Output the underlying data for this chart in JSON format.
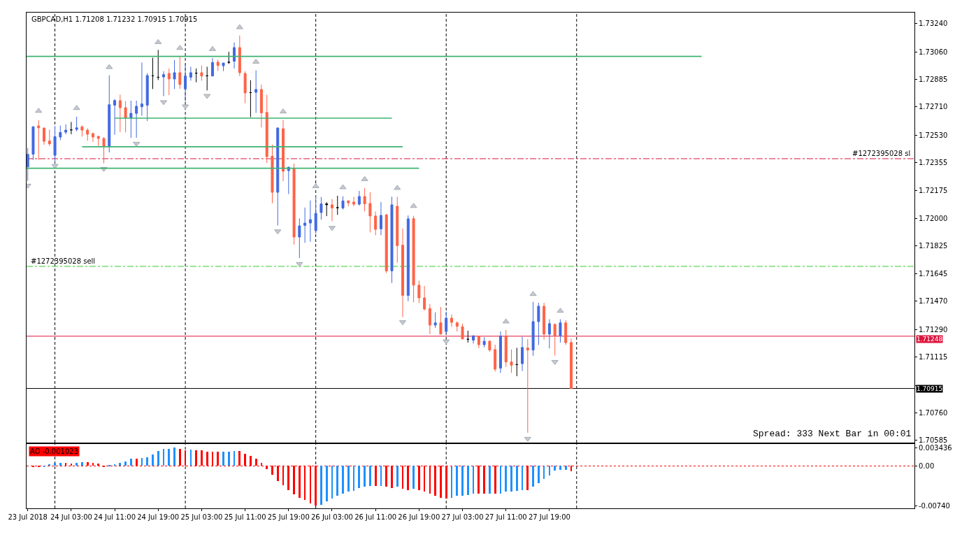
{
  "chart_data": [
    {
      "type": "candlestick",
      "title": "GBPCAD,H1 1.71208 1.71232 1.70915 1.70915",
      "x": [
        "2018-07-23T19:00",
        "2018-07-23T20:00",
        "2018-07-23T21:00",
        "2018-07-23T22:00",
        "2018-07-23T23:00",
        "2018-07-24T00:00",
        "2018-07-24T01:00",
        "2018-07-24T02:00",
        "2018-07-24T03:00",
        "2018-07-24T04:00",
        "2018-07-24T05:00",
        "2018-07-24T06:00",
        "2018-07-24T07:00",
        "2018-07-24T08:00",
        "2018-07-24T09:00",
        "2018-07-24T10:00",
        "2018-07-24T11:00",
        "2018-07-24T12:00",
        "2018-07-24T13:00",
        "2018-07-24T14:00",
        "2018-07-24T15:00",
        "2018-07-24T16:00",
        "2018-07-24T17:00",
        "2018-07-24T18:00",
        "2018-07-24T19:00",
        "2018-07-24T20:00",
        "2018-07-24T21:00",
        "2018-07-24T22:00",
        "2018-07-24T23:00",
        "2018-07-25T00:00",
        "2018-07-25T01:00",
        "2018-07-25T02:00",
        "2018-07-25T03:00",
        "2018-07-25T04:00",
        "2018-07-25T05:00",
        "2018-07-25T06:00",
        "2018-07-25T07:00",
        "2018-07-25T08:00",
        "2018-07-25T09:00",
        "2018-07-25T10:00",
        "2018-07-25T11:00",
        "2018-07-25T12:00",
        "2018-07-25T13:00",
        "2018-07-25T14:00",
        "2018-07-25T15:00",
        "2018-07-25T16:00",
        "2018-07-25T17:00",
        "2018-07-25T18:00",
        "2018-07-25T19:00",
        "2018-07-25T20:00",
        "2018-07-25T21:00",
        "2018-07-25T22:00",
        "2018-07-25T23:00",
        "2018-07-26T00:00",
        "2018-07-26T01:00",
        "2018-07-26T02:00",
        "2018-07-26T03:00",
        "2018-07-26T04:00",
        "2018-07-26T05:00",
        "2018-07-26T06:00",
        "2018-07-26T07:00",
        "2018-07-26T08:00",
        "2018-07-26T09:00",
        "2018-07-26T10:00",
        "2018-07-26T11:00",
        "2018-07-26T12:00",
        "2018-07-26T13:00",
        "2018-07-26T14:00",
        "2018-07-26T15:00",
        "2018-07-26T16:00",
        "2018-07-26T17:00",
        "2018-07-26T18:00",
        "2018-07-26T19:00",
        "2018-07-26T20:00",
        "2018-07-26T21:00",
        "2018-07-26T22:00",
        "2018-07-26T23:00",
        "2018-07-27T00:00",
        "2018-07-27T01:00",
        "2018-07-27T02:00",
        "2018-07-27T03:00",
        "2018-07-27T04:00",
        "2018-07-27T05:00",
        "2018-07-27T06:00",
        "2018-07-27T07:00",
        "2018-07-27T08:00",
        "2018-07-27T09:00",
        "2018-07-27T10:00",
        "2018-07-27T11:00",
        "2018-07-27T12:00",
        "2018-07-27T13:00",
        "2018-07-27T14:00",
        "2018-07-27T15:00",
        "2018-07-27T16:00",
        "2018-07-27T17:00",
        "2018-07-27T18:00",
        "2018-07-27T19:00",
        "2018-07-27T20:00",
        "2018-07-27T21:00",
        "2018-07-27T22:00",
        "2018-07-27T23:00"
      ],
      "ohlc": [
        [
          1.72327,
          1.72447,
          1.72238,
          1.72407
        ],
        [
          1.72408,
          1.72587,
          1.72371,
          1.72582
        ],
        [
          1.72588,
          1.72624,
          1.72371,
          1.72576
        ],
        [
          1.72575,
          1.72576,
          1.72468,
          1.7249
        ],
        [
          1.72492,
          1.72564,
          1.7246,
          1.72474
        ],
        [
          1.72401,
          1.72587,
          1.72357,
          1.7252
        ],
        [
          1.72517,
          1.7259,
          1.72497,
          1.72546
        ],
        [
          1.72548,
          1.72598,
          1.72535,
          1.72561
        ],
        [
          1.72563,
          1.72613,
          1.72535,
          1.72563
        ],
        [
          1.72566,
          1.72647,
          1.72553,
          1.72576
        ],
        [
          1.72582,
          1.72591,
          1.7252,
          1.72561
        ],
        [
          1.72561,
          1.72573,
          1.72493,
          1.72535
        ],
        [
          1.72539,
          1.72546,
          1.72486,
          1.72517
        ],
        [
          1.72521,
          1.72526,
          1.7246,
          1.72508
        ],
        [
          1.72508,
          1.72517,
          1.72349,
          1.72456
        ],
        [
          1.72456,
          1.7291,
          1.72419,
          1.72723
        ],
        [
          1.7272,
          1.72758,
          1.72532,
          1.7275
        ],
        [
          1.72749,
          1.72787,
          1.72549,
          1.72704
        ],
        [
          1.72704,
          1.72746,
          1.72546,
          1.72639
        ],
        [
          1.72639,
          1.72749,
          1.72512,
          1.72668
        ],
        [
          1.72668,
          1.72749,
          1.72512,
          1.72713
        ],
        [
          1.7271,
          1.72992,
          1.72653,
          1.72728
        ],
        [
          1.7272,
          1.72924,
          1.72619,
          1.72909
        ],
        [
          1.72907,
          1.73022,
          1.72823,
          1.72907
        ],
        [
          1.72898,
          1.73072,
          1.7288,
          1.72898
        ],
        [
          1.729,
          1.72936,
          1.72778,
          1.72915
        ],
        [
          1.72922,
          1.72954,
          1.72784,
          1.72887
        ],
        [
          1.72887,
          1.73007,
          1.72823,
          1.72927
        ],
        [
          1.72927,
          1.73029,
          1.72824,
          1.72852
        ],
        [
          1.72824,
          1.7298,
          1.72742,
          1.72906
        ],
        [
          1.72898,
          1.72965,
          1.72876,
          1.72927
        ],
        [
          1.72924,
          1.72954,
          1.72866,
          1.72924
        ],
        [
          1.72927,
          1.72973,
          1.72876,
          1.72906
        ],
        [
          1.72907,
          1.72965,
          1.72814,
          1.72907
        ],
        [
          1.72906,
          1.7302,
          1.72904,
          1.72992
        ],
        [
          1.72994,
          1.7301,
          1.72938,
          1.72973
        ],
        [
          1.72971,
          1.72989,
          1.72937,
          1.72989
        ],
        [
          1.72994,
          1.7306,
          1.72983,
          1.72994
        ],
        [
          1.73,
          1.7312,
          1.72954,
          1.73087
        ],
        [
          1.73087,
          1.73164,
          1.72905,
          1.72927
        ],
        [
          1.72922,
          1.72937,
          1.72733,
          1.72798
        ],
        [
          1.728,
          1.72879,
          1.72644,
          1.728
        ],
        [
          1.72802,
          1.72942,
          1.72671,
          1.7282
        ],
        [
          1.7282,
          1.72852,
          1.72578,
          1.72671
        ],
        [
          1.72674,
          1.72786,
          1.72352,
          1.72392
        ],
        [
          1.72395,
          1.72469,
          1.72095,
          1.72165
        ],
        [
          1.72165,
          1.72578,
          1.71954,
          1.72575
        ],
        [
          1.7257,
          1.72625,
          1.72236,
          1.72299
        ],
        [
          1.72303,
          1.72328,
          1.72154,
          1.72325
        ],
        [
          1.72318,
          1.72348,
          1.71832,
          1.7188
        ],
        [
          1.7188,
          1.71998,
          1.71746,
          1.71951
        ],
        [
          1.71954,
          1.72068,
          1.71843,
          1.71969
        ],
        [
          1.71969,
          1.72113,
          1.7185,
          1.71991
        ],
        [
          1.71921,
          1.72147,
          1.71902,
          1.72031
        ],
        [
          1.72036,
          1.72135,
          1.71991,
          1.72091
        ],
        [
          1.72091,
          1.72102,
          1.72013,
          1.72086
        ],
        [
          1.72085,
          1.72122,
          1.71981,
          1.72065
        ],
        [
          1.72067,
          1.72143,
          1.72021,
          1.72067
        ],
        [
          1.72065,
          1.7214,
          1.72055,
          1.7211
        ],
        [
          1.7211,
          1.72113,
          1.72076,
          1.72098
        ],
        [
          1.72103,
          1.72135,
          1.72076,
          1.72089
        ],
        [
          1.72089,
          1.72174,
          1.7208,
          1.72138
        ],
        [
          1.72138,
          1.72192,
          1.72043,
          1.72092
        ],
        [
          1.72094,
          1.72165,
          1.71909,
          1.72014
        ],
        [
          1.72014,
          1.72043,
          1.71891,
          1.71929
        ],
        [
          1.71932,
          1.72103,
          1.71891,
          1.72018
        ],
        [
          1.72021,
          1.72028,
          1.7165,
          1.71664
        ],
        [
          1.71664,
          1.72137,
          1.71587,
          1.72085
        ],
        [
          1.72076,
          1.72137,
          1.71716,
          1.71825
        ],
        [
          1.71828,
          1.71935,
          1.7137,
          1.71508
        ],
        [
          1.71508,
          1.72018,
          1.71471,
          1.71996
        ],
        [
          1.71997,
          1.72015,
          1.71464,
          1.71573
        ],
        [
          1.71573,
          1.71602,
          1.71459,
          1.71492
        ],
        [
          1.71492,
          1.71568,
          1.71412,
          1.71421
        ],
        [
          1.71424,
          1.71452,
          1.71261,
          1.71319
        ],
        [
          1.71319,
          1.714,
          1.71301,
          1.71333
        ],
        [
          1.71333,
          1.71434,
          1.7126,
          1.71261
        ],
        [
          1.71278,
          1.71405,
          1.71261,
          1.71363
        ],
        [
          1.71363,
          1.71387,
          1.71308,
          1.71336
        ],
        [
          1.71333,
          1.71342,
          1.71278,
          1.71311
        ],
        [
          1.71308,
          1.71328,
          1.71229,
          1.7123
        ],
        [
          1.71228,
          1.71283,
          1.71207,
          1.71228
        ],
        [
          1.71223,
          1.71256,
          1.71201,
          1.71249
        ],
        [
          1.71249,
          1.71252,
          1.71172,
          1.71194
        ],
        [
          1.71194,
          1.71241,
          1.71177,
          1.71216
        ],
        [
          1.71216,
          1.71222,
          1.71149,
          1.7116
        ],
        [
          1.71163,
          1.71194,
          1.71023,
          1.71038
        ],
        [
          1.71044,
          1.71278,
          1.71014,
          1.71249
        ],
        [
          1.71249,
          1.71289,
          1.71053,
          1.71084
        ],
        [
          1.71085,
          1.71163,
          1.71014,
          1.71063
        ],
        [
          1.71067,
          1.71174,
          1.70993,
          1.71067
        ],
        [
          1.71073,
          1.71244,
          1.71026,
          1.71176
        ],
        [
          1.71173,
          1.71229,
          1.70633,
          1.7116
        ],
        [
          1.7116,
          1.71467,
          1.71123,
          1.71341
        ],
        [
          1.71341,
          1.71461,
          1.71192,
          1.71439
        ],
        [
          1.71439,
          1.71461,
          1.71226,
          1.71261
        ],
        [
          1.71261,
          1.71356,
          1.7117,
          1.71328
        ],
        [
          1.71323,
          1.7133,
          1.71125,
          1.71252
        ],
        [
          1.71252,
          1.71356,
          1.71207,
          1.71333
        ],
        [
          1.71333,
          1.7135,
          1.71192,
          1.71207
        ],
        [
          1.71208,
          1.71232,
          1.70915,
          1.70915
        ]
      ],
      "colors": [
        "#4169e1",
        "#4169e1",
        "#ff6347",
        "#ff6347",
        "#ff6347",
        "#4169e1",
        "#4169e1",
        "#4169e1",
        "#000000",
        "#4169e1",
        "#ff6347",
        "#ff6347",
        "#ff6347",
        "#ff6347",
        "#ff6347",
        "#4169e1",
        "#4169e1",
        "#ff6347",
        "#ff6347",
        "#4169e1",
        "#4169e1",
        "#4169e1",
        "#4169e1",
        "#000000",
        "#000000",
        "#4169e1",
        "#ff6347",
        "#4169e1",
        "#ff6347",
        "#4169e1",
        "#4169e1",
        "#000000",
        "#ff6347",
        "#000000",
        "#4169e1",
        "#ff6347",
        "#4169e1",
        "#000000",
        "#4169e1",
        "#ff6347",
        "#ff6347",
        "#000000",
        "#4169e1",
        "#ff6347",
        "#ff6347",
        "#ff6347",
        "#4169e1",
        "#ff6347",
        "#4169e1",
        "#ff6347",
        "#4169e1",
        "#4169e1",
        "#4169e1",
        "#4169e1",
        "#4169e1",
        "#000000",
        "#ff6347",
        "#000000",
        "#4169e1",
        "#ff6347",
        "#ff6347",
        "#4169e1",
        "#ff6347",
        "#ff6347",
        "#ff6347",
        "#4169e1",
        "#ff6347",
        "#4169e1",
        "#ff6347",
        "#ff6347",
        "#4169e1",
        "#ff6347",
        "#ff6347",
        "#ff6347",
        "#ff6347",
        "#4169e1",
        "#ff6347",
        "#4169e1",
        "#ff6347",
        "#ff6347",
        "#ff6347",
        "#000000",
        "#4169e1",
        "#ff6347",
        "#4169e1",
        "#ff6347",
        "#ff6347",
        "#4169e1",
        "#ff6347",
        "#ff6347",
        "#000000",
        "#4169e1",
        "#ff6347",
        "#4169e1",
        "#4169e1",
        "#ff6347",
        "#4169e1",
        "#ff6347",
        "#4169e1",
        "#ff6347",
        "#ff6347"
      ],
      "series": [
        {
          "type": "scatter",
          "marker": "triangle-up",
          "color": "#c4c8d0",
          "x": [
            "2018-07-23T21:00",
            "2018-07-24T04:00",
            "2018-07-24T10:00",
            "2018-07-24T19:00",
            "2018-07-24T23:00",
            "2018-07-25T05:00",
            "2018-07-25T10:00",
            "2018-07-25T13:00",
            "2018-07-25T18:00",
            "2018-07-26T00:00",
            "2018-07-26T05:00",
            "2018-07-26T09:00",
            "2018-07-26T15:00",
            "2018-07-26T18:00",
            "2018-07-27T11:00",
            "2018-07-27T16:00",
            "2018-07-27T21:00"
          ],
          "values": [
            1.72683,
            1.72701,
            1.72962,
            1.73121,
            1.73084,
            1.73077,
            1.73216,
            1.72996,
            1.72679,
            1.72203,
            1.72196,
            1.72248,
            1.72192,
            1.72077,
            1.71341,
            1.71516,
            1.71409
          ]
        },
        {
          "type": "scatter",
          "marker": "triangle-down",
          "color": "#c4c8d0",
          "x": [
            "2018-07-23T19:00",
            "2018-07-24T00:00",
            "2018-07-24T09:00",
            "2018-07-24T15:00",
            "2018-07-24T20:00",
            "2018-07-25T00:00",
            "2018-07-25T04:00",
            "2018-07-25T17:00",
            "2018-07-25T21:00",
            "2018-07-26T03:00",
            "2018-07-26T16:00",
            "2018-07-27T00:00",
            "2018-07-27T15:00",
            "2018-07-27T20:00"
          ],
          "values": [
            1.72208,
            1.72334,
            1.72315,
            1.72475,
            1.7274,
            1.72713,
            1.7278,
            1.71917,
            1.71709,
            1.71939,
            1.71338,
            1.71216,
            1.70595,
            1.71085
          ]
        },
        {
          "type": "line",
          "color": "#3cb371",
          "x": [
            "2018-07-23T18:47",
            "2018-07-28T23:00"
          ],
          "values": [
            1.73031,
            1.73031
          ]
        },
        {
          "type": "line",
          "color": "#3cb371",
          "x": [
            "2018-07-24T11:00",
            "2018-07-26T14:00"
          ],
          "values": [
            1.72637,
            1.72637
          ]
        },
        {
          "type": "line",
          "color": "#3cb371",
          "x": [
            "2018-07-24T05:00",
            "2018-07-26T16:00"
          ],
          "values": [
            1.72455,
            1.72455
          ]
        },
        {
          "type": "line",
          "color": "#3cb371",
          "x": [
            "2018-07-23T18:47",
            "2018-07-26T19:00"
          ],
          "values": [
            1.72318,
            1.72318
          ]
        }
      ],
      "ref_lines": [
        {
          "axis": "x",
          "value": "2018-07-24T00:00",
          "color": "#000000",
          "line_style": "dashed"
        },
        {
          "axis": "x",
          "value": "2018-07-25T00:00",
          "color": "#000000",
          "line_style": "dashed"
        },
        {
          "axis": "x",
          "value": "2018-07-26T00:00",
          "color": "#000000",
          "line_style": "dashed"
        },
        {
          "axis": "x",
          "value": "2018-07-27T00:00",
          "color": "#000000",
          "line_style": "dashed"
        },
        {
          "axis": "x",
          "value": "2018-07-28T00:00",
          "color": "#000000",
          "line_style": "dashed"
        },
        {
          "axis": "y",
          "value": 1.72379,
          "label": "#1272395028 sl",
          "color": "#dc143c",
          "line_style": "dashdot"
        },
        {
          "axis": "y",
          "value": 1.71693,
          "label": "#1272395028 sell",
          "color": "#32cd32",
          "line_style": "dashdot"
        },
        {
          "axis": "y",
          "value": 1.71248,
          "label": "1.71248",
          "color": "#dc143c",
          "line_style": "solid"
        },
        {
          "axis": "y",
          "value": 1.70915,
          "label": "1.70915",
          "color": "#000000",
          "line_style": "solid"
        }
      ],
      "annotations": [
        "Spread: 333 Next Bar in 00:01"
      ],
      "xlim": [
        "2018-07-23T18:47",
        "2018-07-30T14:10"
      ],
      "ylim": [
        1.7057,
        1.7331
      ],
      "yticks": [
        {
          "value": 1.7324,
          "label": "1.73240"
        },
        {
          "value": 1.7306,
          "label": "1.73060"
        },
        1.72885,
        {
          "value": 1.7271,
          "label": "1.72710"
        },
        {
          "value": 1.7253,
          "label": "1.72530"
        },
        1.72355,
        1.72175,
        {
          "value": 1.72,
          "label": "1.72000"
        },
        1.71825,
        1.71645,
        {
          "value": 1.7147,
          "label": "1.71470"
        },
        {
          "value": 1.7129,
          "label": "1.71290"
        },
        1.71115,
        {
          "value": 1.70935,
          "label": null
        },
        {
          "value": 1.7076,
          "label": "1.70760"
        },
        1.70585
      ],
      "tick_labels": "y"
    },
    {
      "type": "bar",
      "title": "AO -0.001023",
      "x": [
        "2018-07-23T20:00",
        "2018-07-23T21:00",
        "2018-07-23T22:00",
        "2018-07-23T23:00",
        "2018-07-24T00:00",
        "2018-07-24T01:00",
        "2018-07-24T02:00",
        "2018-07-24T03:00",
        "2018-07-24T04:00",
        "2018-07-24T05:00",
        "2018-07-24T06:00",
        "2018-07-24T07:00",
        "2018-07-24T08:00",
        "2018-07-24T09:00",
        "2018-07-24T10:00",
        "2018-07-24T11:00",
        "2018-07-24T12:00",
        "2018-07-24T13:00",
        "2018-07-24T14:00",
        "2018-07-24T15:00",
        "2018-07-24T16:00",
        "2018-07-24T17:00",
        "2018-07-24T18:00",
        "2018-07-24T19:00",
        "2018-07-24T20:00",
        "2018-07-24T21:00",
        "2018-07-24T22:00",
        "2018-07-24T23:00",
        "2018-07-25T00:00",
        "2018-07-25T01:00",
        "2018-07-25T02:00",
        "2018-07-25T03:00",
        "2018-07-25T04:00",
        "2018-07-25T05:00",
        "2018-07-25T06:00",
        "2018-07-25T07:00",
        "2018-07-25T08:00",
        "2018-07-25T09:00",
        "2018-07-25T10:00",
        "2018-07-25T11:00",
        "2018-07-25T12:00",
        "2018-07-25T13:00",
        "2018-07-25T14:00",
        "2018-07-25T15:00",
        "2018-07-25T16:00",
        "2018-07-25T17:00",
        "2018-07-25T18:00",
        "2018-07-25T19:00",
        "2018-07-25T20:00",
        "2018-07-25T21:00",
        "2018-07-25T22:00",
        "2018-07-25T23:00",
        "2018-07-26T00:00",
        "2018-07-26T01:00",
        "2018-07-26T02:00",
        "2018-07-26T03:00",
        "2018-07-26T04:00",
        "2018-07-26T05:00",
        "2018-07-26T06:00",
        "2018-07-26T07:00",
        "2018-07-26T08:00",
        "2018-07-26T09:00",
        "2018-07-26T10:00",
        "2018-07-26T11:00",
        "2018-07-26T12:00",
        "2018-07-26T13:00",
        "2018-07-26T14:00",
        "2018-07-26T15:00",
        "2018-07-26T16:00",
        "2018-07-26T17:00",
        "2018-07-26T18:00",
        "2018-07-26T19:00",
        "2018-07-26T20:00",
        "2018-07-26T21:00",
        "2018-07-26T22:00",
        "2018-07-26T23:00",
        "2018-07-27T00:00",
        "2018-07-27T01:00",
        "2018-07-27T02:00",
        "2018-07-27T03:00",
        "2018-07-27T04:00",
        "2018-07-27T05:00",
        "2018-07-27T06:00",
        "2018-07-27T07:00",
        "2018-07-27T08:00",
        "2018-07-27T09:00",
        "2018-07-27T10:00",
        "2018-07-27T11:00",
        "2018-07-27T12:00",
        "2018-07-27T13:00",
        "2018-07-27T14:00",
        "2018-07-27T15:00",
        "2018-07-27T16:00",
        "2018-07-27T17:00",
        "2018-07-27T18:00",
        "2018-07-27T19:00",
        "2018-07-27T20:00",
        "2018-07-27T21:00",
        "2018-07-27T22:00",
        "2018-07-27T23:00"
      ],
      "values": [
        -0.0002,
        -0.0002,
        -0.0001,
        0.0003,
        0.0006,
        0.0006,
        0.0006,
        0.0004,
        0.0006,
        0.0007,
        0.0007,
        0.0006,
        0.0005,
        -0.0001,
        0.0001,
        0.0003,
        0.0006,
        0.0009,
        0.0014,
        0.0013,
        0.0015,
        0.0016,
        0.0022,
        0.0028,
        0.0032,
        0.0032,
        0.003436,
        0.0032,
        0.0029,
        0.003,
        0.0029,
        0.0029,
        0.0027,
        0.0027,
        0.0027,
        0.0027,
        0.0027,
        0.0028,
        0.0028,
        0.0023,
        0.0019,
        0.0013,
        0.0006,
        -0.0006,
        -0.0016,
        -0.0028,
        -0.0036,
        -0.0045,
        -0.0053,
        -0.006,
        -0.0063,
        -0.007,
        -0.0074,
        -0.0073,
        -0.0066,
        -0.0061,
        -0.0056,
        -0.0052,
        -0.0048,
        -0.0046,
        -0.0041,
        -0.0038,
        -0.0037,
        -0.0037,
        -0.0037,
        -0.0039,
        -0.0041,
        -0.0039,
        -0.0043,
        -0.0045,
        -0.0043,
        -0.0045,
        -0.0048,
        -0.0051,
        -0.0055,
        -0.006,
        -0.0061,
        -0.0059,
        -0.0056,
        -0.0055,
        -0.0054,
        -0.0052,
        -0.0052,
        -0.0052,
        -0.0052,
        -0.0052,
        -0.0051,
        -0.0048,
        -0.0048,
        -0.0047,
        -0.0045,
        -0.0045,
        -0.0039,
        -0.0032,
        -0.0024,
        -0.0018,
        -0.0009,
        -0.0007,
        -0.0007,
        -0.001023
      ],
      "colors": [
        "#ff0000",
        "#ff0000",
        "#1e90ff",
        "#1e90ff",
        "#1e90ff",
        "#1e90ff",
        "#ff0000",
        "#ff0000",
        "#1e90ff",
        "#1e90ff",
        "#ff0000",
        "#ff0000",
        "#ff0000",
        "#ff0000",
        "#1e90ff",
        "#1e90ff",
        "#1e90ff",
        "#1e90ff",
        "#1e90ff",
        "#ff0000",
        "#1e90ff",
        "#1e90ff",
        "#1e90ff",
        "#1e90ff",
        "#1e90ff",
        "#1e90ff",
        "#1e90ff",
        "#ff0000",
        "#ff0000",
        "#1e90ff",
        "#ff0000",
        "#ff0000",
        "#ff0000",
        "#ff0000",
        "#ff0000",
        "#1e90ff",
        "#1e90ff",
        "#1e90ff",
        "#ff0000",
        "#ff0000",
        "#ff0000",
        "#ff0000",
        "#ff0000",
        "#ff0000",
        "#ff0000",
        "#ff0000",
        "#ff0000",
        "#ff0000",
        "#ff0000",
        "#ff0000",
        "#ff0000",
        "#ff0000",
        "#ff0000",
        "#1e90ff",
        "#1e90ff",
        "#1e90ff",
        "#1e90ff",
        "#1e90ff",
        "#1e90ff",
        "#1e90ff",
        "#1e90ff",
        "#1e90ff",
        "#1e90ff",
        "#ff0000",
        "#1e90ff",
        "#ff0000",
        "#ff0000",
        "#1e90ff",
        "#ff0000",
        "#ff0000",
        "#1e90ff",
        "#ff0000",
        "#ff0000",
        "#ff0000",
        "#ff0000",
        "#ff0000",
        "#ff0000",
        "#1e90ff",
        "#1e90ff",
        "#1e90ff",
        "#1e90ff",
        "#1e90ff",
        "#ff0000",
        "#ff0000",
        "#1e90ff",
        "#ff0000",
        "#1e90ff",
        "#1e90ff",
        "#1e90ff",
        "#1e90ff",
        "#1e90ff",
        "#ff0000",
        "#1e90ff",
        "#1e90ff",
        "#1e90ff",
        "#1e90ff",
        "#1e90ff",
        "#1e90ff",
        "#1e90ff",
        "#ff0000"
      ],
      "ref_lines": [
        {
          "axis": "x",
          "value": "2018-07-24T00:00",
          "color": "#000000",
          "line_style": "dashed"
        },
        {
          "axis": "x",
          "value": "2018-07-25T00:00",
          "color": "#000000",
          "line_style": "dashed"
        },
        {
          "axis": "x",
          "value": "2018-07-26T00:00",
          "color": "#000000",
          "line_style": "dashed"
        },
        {
          "axis": "x",
          "value": "2018-07-27T00:00",
          "color": "#000000",
          "line_style": "dashed"
        },
        {
          "axis": "x",
          "value": "2018-07-28T00:00",
          "color": "#000000",
          "line_style": "dashed"
        },
        {
          "axis": "y",
          "value": 0,
          "color": "#ff0000",
          "line_style": "dotted"
        }
      ],
      "xlim": [
        "2018-07-23T18:47",
        "2018-07-30T14:10"
      ],
      "xticks": [
        {
          "value": "2018-07-23T19:00",
          "label": "23 Jul 2018"
        },
        {
          "value": "2018-07-24T03:00",
          "label": "24 Jul 03:00"
        },
        {
          "value": "2018-07-24T11:00",
          "label": "24 Jul 11:00"
        },
        {
          "value": "2018-07-24T19:00",
          "label": "24 Jul 19:00"
        },
        {
          "value": "2018-07-25T03:00",
          "label": "25 Jul 03:00"
        },
        {
          "value": "2018-07-25T11:00",
          "label": "25 Jul 11:00"
        },
        {
          "value": "2018-07-25T19:00",
          "label": "25 Jul 19:00"
        },
        {
          "value": "2018-07-26T03:00",
          "label": "26 Jul 03:00"
        },
        {
          "value": "2018-07-26T11:00",
          "label": "26 Jul 11:00"
        },
        {
          "value": "2018-07-26T19:00",
          "label": "26 Jul 19:00"
        },
        {
          "value": "2018-07-27T03:00",
          "label": "27 Jul 03:00"
        },
        {
          "value": "2018-07-27T11:00",
          "label": "27 Jul 11:00"
        },
        {
          "value": "2018-07-27T19:00",
          "label": "27 Jul 19:00"
        }
      ],
      "ylim": [
        -0.0079,
        0.0041
      ],
      "yticks": [
        0.003436,
        {
          "value": 0,
          "label": "0.00"
        },
        {
          "value": -0.0074,
          "label": "-0.00740"
        }
      ]
    }
  ]
}
